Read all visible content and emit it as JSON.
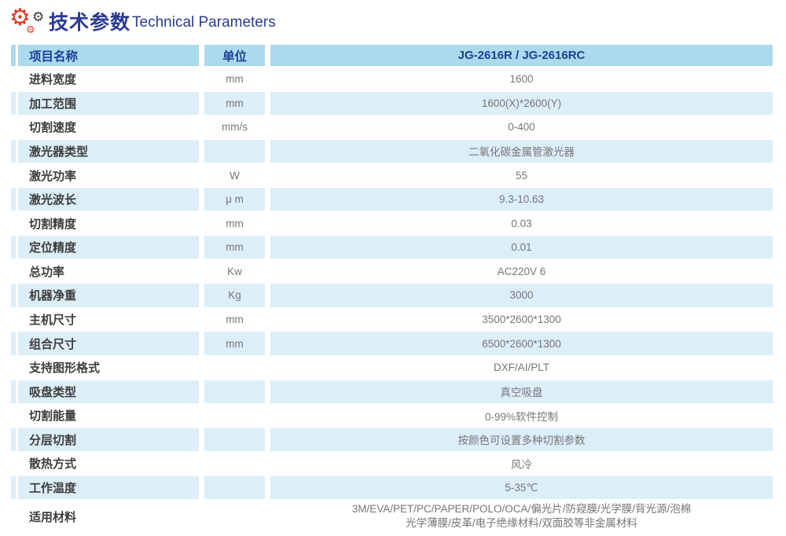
{
  "header": {
    "title_zh": "技术参数",
    "title_en": "Technical Parameters",
    "icon": "gears-icon"
  },
  "colors": {
    "title_blue": "#2b3a94",
    "header_bg": "#abdaed",
    "row_alt_bg": "#dceef8",
    "header_text": "#1d3f97",
    "label_color": "#3d3d3d",
    "value_color": "#767676",
    "gear_red": "#e23a26",
    "gear_dark": "#3a3a3a"
  },
  "table": {
    "headers": {
      "name": "项目名称",
      "unit": "单位",
      "model": "JG-2616R / JG-2616RC"
    },
    "rows": [
      {
        "name": "进料宽度",
        "unit": "mm",
        "value": "1600"
      },
      {
        "name": "加工范围",
        "unit": "mm",
        "value": "1600(X)*2600(Y)"
      },
      {
        "name": "切割速度",
        "unit": "mm/s",
        "value": "0-400"
      },
      {
        "name": "激光器类型",
        "unit": "",
        "value": "二氧化碳金属管激光器"
      },
      {
        "name": "激光功率",
        "unit": "W",
        "value": "55"
      },
      {
        "name": "激光波长",
        "unit": "μ m",
        "value": "9.3-10.63"
      },
      {
        "name": "切割精度",
        "unit": "mm",
        "value": "0.03"
      },
      {
        "name": "定位精度",
        "unit": "mm",
        "value": "0.01"
      },
      {
        "name": "总功率",
        "unit": "Kw",
        "value": "AC220V 6"
      },
      {
        "name": "机器净重",
        "unit": "Kg",
        "value": "3000"
      },
      {
        "name": "主机尺寸",
        "unit": "mm",
        "value": "3500*2600*1300"
      },
      {
        "name": "组合尺寸",
        "unit": "mm",
        "value": "6500*2600*1300"
      },
      {
        "name": "支持图形格式",
        "unit": "",
        "value": "DXF/AI/PLT"
      },
      {
        "name": "吸盘类型",
        "unit": "",
        "value": "真空吸盘"
      },
      {
        "name": "切割能量",
        "unit": "",
        "value": "0-99%软件控制"
      },
      {
        "name": "分层切割",
        "unit": "",
        "value": "按颜色可设置多种切割参数"
      },
      {
        "name": "散热方式",
        "unit": "",
        "value": "风冷"
      },
      {
        "name": "工作温度",
        "unit": "",
        "value": "5-35℃"
      },
      {
        "name": "适用材料",
        "unit": "",
        "value": "3M/EVA/PET/PC/PAPER/POLO/OCA/偏光片/防窥膜/光学膜/背光源/泡棉",
        "value2": "光学薄膜/皮革/电子绝缘材料/双面胶等非金属材料"
      }
    ]
  }
}
